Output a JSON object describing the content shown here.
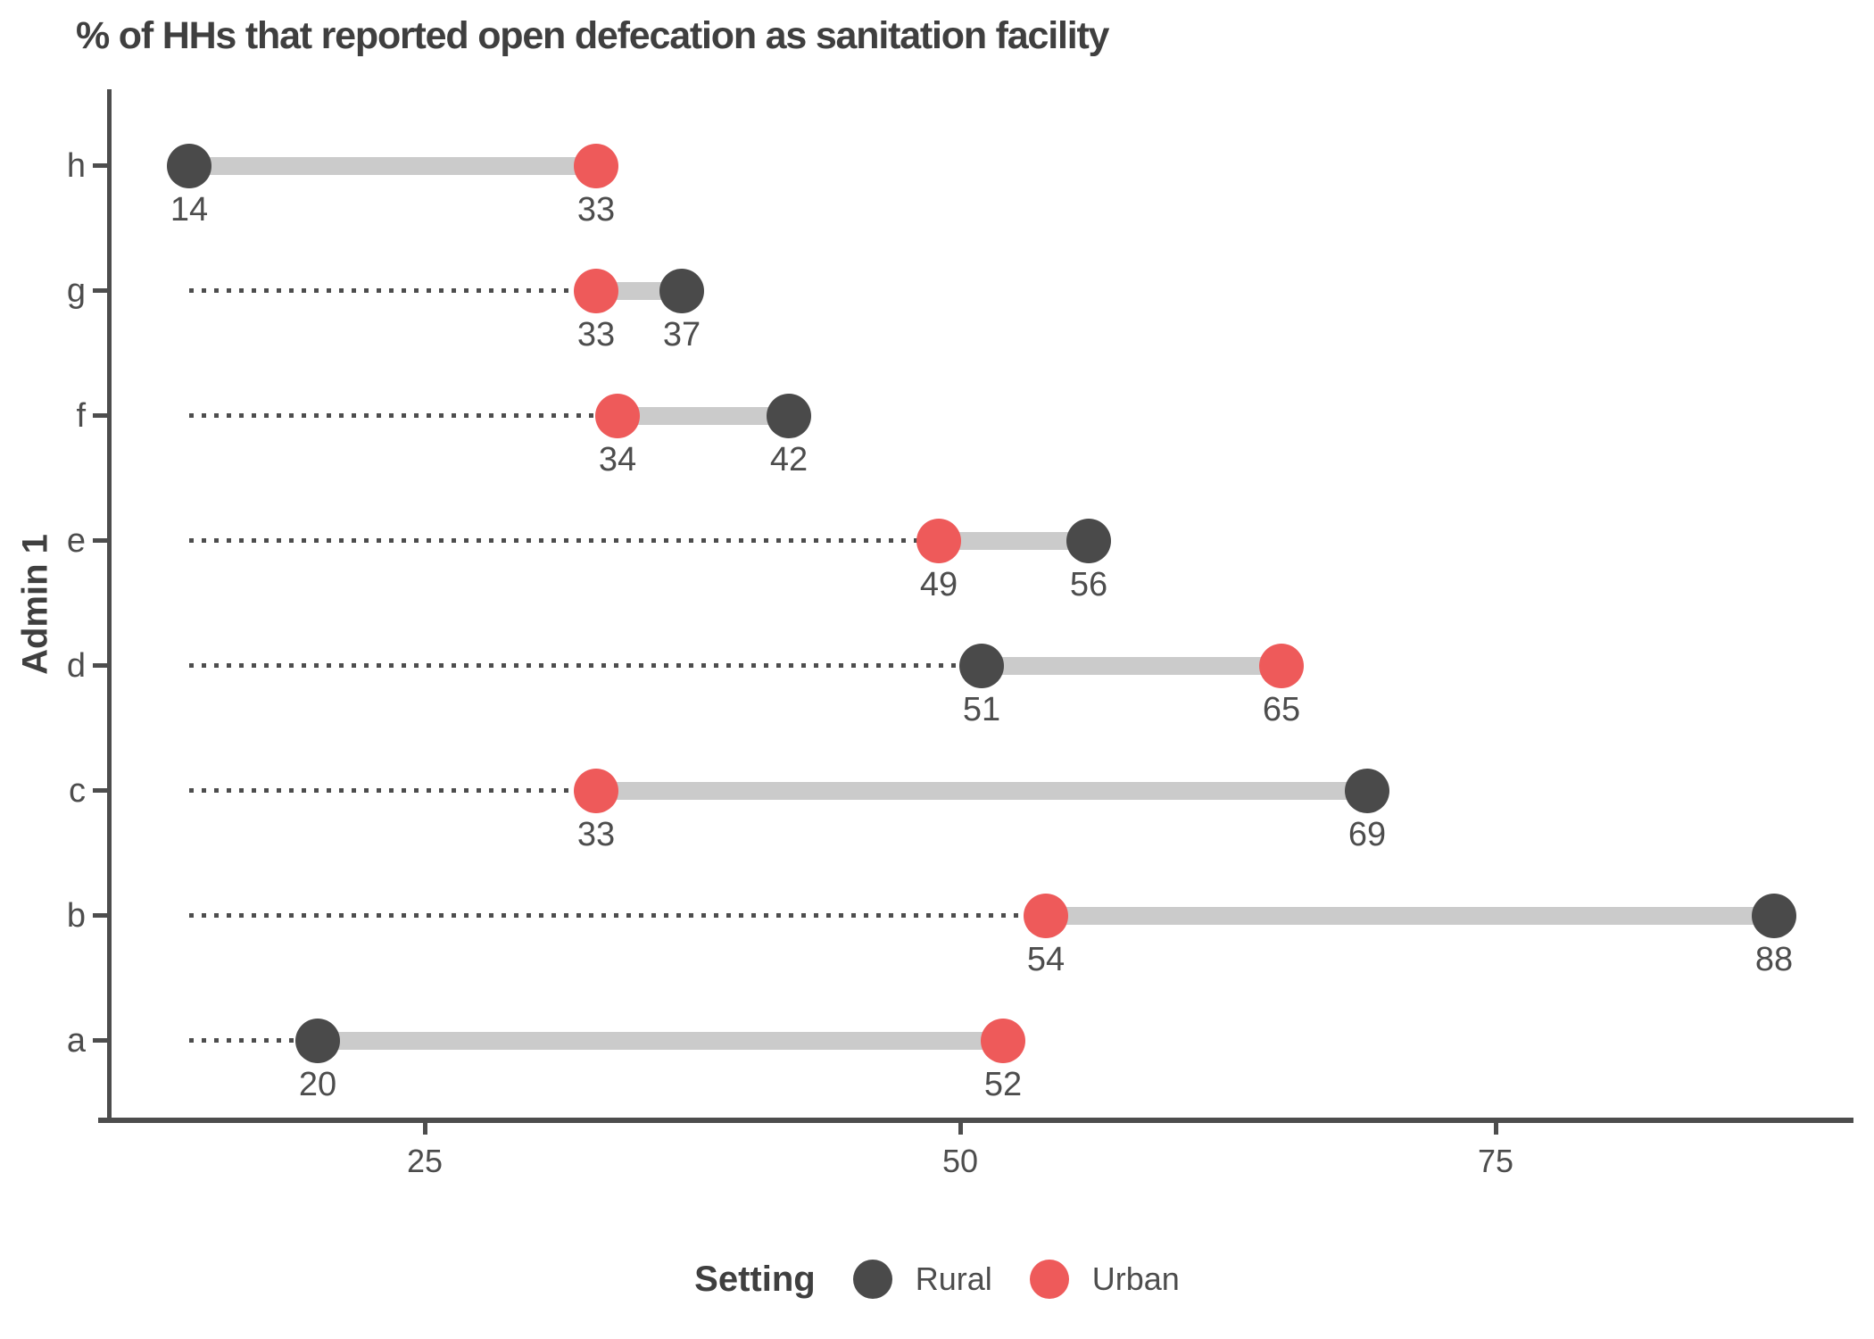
{
  "title": "% of HHs that reported open defecation as sanitation facility",
  "y_axis_label": "Admin 1",
  "legend": {
    "title": "Setting",
    "items": [
      {
        "label": "Rural",
        "color": "#4A4A4A"
      },
      {
        "label": "Urban",
        "color": "#EE5A5A"
      }
    ]
  },
  "colors": {
    "rural": "#4A4A4A",
    "urban": "#EE5A5A",
    "connector": "#CBCBCB",
    "leader_dots": "#4D4D4D",
    "axis": "#4D4D4D",
    "text": "#4D4D4D",
    "title": "#3F3F3F"
  },
  "chart_data": {
    "type": "dumbbell",
    "orientation": "horizontal",
    "title": "% of HHs that reported open defecation as sanitation facility",
    "xlabel": "",
    "ylabel": "Admin 1",
    "x_ticks": [
      25,
      50,
      75
    ],
    "xlim": [
      10,
      92
    ],
    "grid": false,
    "legend_position": "bottom",
    "categories": [
      "h",
      "g",
      "f",
      "e",
      "d",
      "c",
      "b",
      "a"
    ],
    "series": [
      {
        "name": "Rural",
        "values": [
          14,
          37,
          42,
          56,
          51,
          69,
          88,
          20
        ]
      },
      {
        "name": "Urban",
        "values": [
          33,
          33,
          34,
          49,
          65,
          33,
          54,
          52
        ]
      }
    ],
    "rows": [
      {
        "category": "h",
        "rural": 14,
        "urban": 33
      },
      {
        "category": "g",
        "rural": 37,
        "urban": 33
      },
      {
        "category": "f",
        "rural": 42,
        "urban": 34
      },
      {
        "category": "e",
        "rural": 56,
        "urban": 49
      },
      {
        "category": "d",
        "rural": 51,
        "urban": 65
      },
      {
        "category": "c",
        "rural": 69,
        "urban": 33
      },
      {
        "category": "b",
        "rural": 88,
        "urban": 54
      },
      {
        "category": "a",
        "rural": 20,
        "urban": 52
      }
    ],
    "annotations": "value labels shown below every point; dotted leader line from global minimum (14) to each row's leftmost point"
  }
}
